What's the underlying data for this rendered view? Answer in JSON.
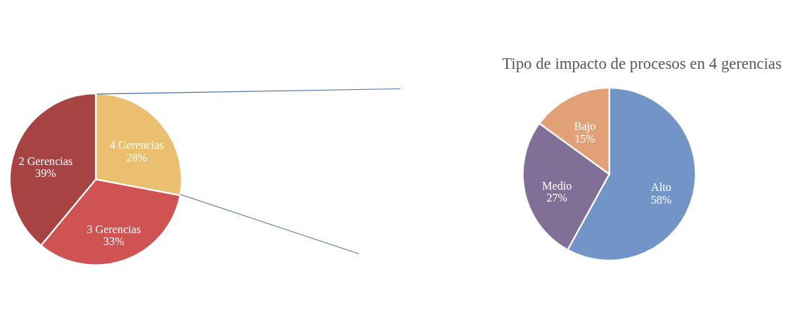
{
  "chart_data": [
    {
      "type": "pie",
      "categories": [
        "4 Gerencias",
        "3 Gerencias",
        "2 Gerencias"
      ],
      "values": [
        28,
        33,
        39
      ],
      "colors": [
        "#ebbf70",
        "#d05353",
        "#a84343"
      ],
      "value_labels": [
        "28%",
        "33%",
        "39%"
      ],
      "legend": false
    },
    {
      "type": "pie",
      "title": "Tipo de impacto de procesos en 4 gerencias",
      "categories": [
        "Alto",
        "Medio",
        "Bajo"
      ],
      "values": [
        58,
        27,
        15
      ],
      "colors": [
        "#7394c7",
        "#816f97",
        "#e2a076"
      ],
      "value_labels": [
        "58%",
        "27%",
        "15%"
      ],
      "legend": false
    }
  ]
}
